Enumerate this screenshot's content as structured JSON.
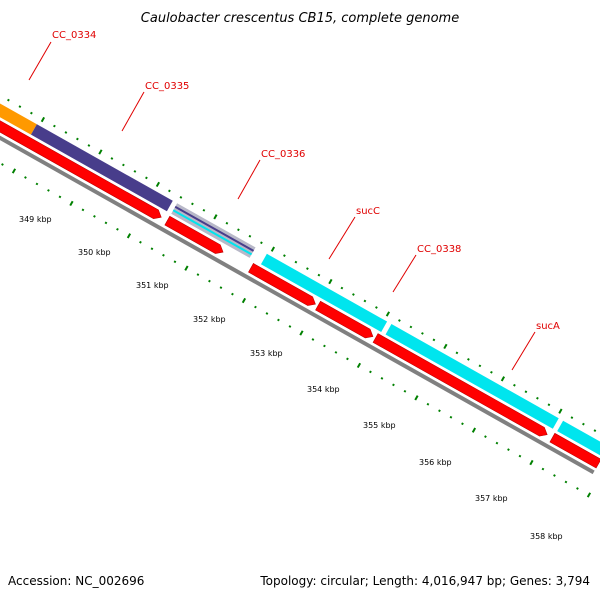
{
  "title": "Caulobacter crescentus CB15, complete genome",
  "accession": "Accession: NC_002696",
  "topology": "Topology: circular; Length: 4,016,947 bp; Genes: 3,794",
  "colors": {
    "cds_reverse": "#ff0000",
    "cds_forward_cyan": "#00e5ee",
    "cds_forward_navy": "#483d8b",
    "cds_forward_orange": "#ff9900",
    "cds_forward_gray": "#b8b8c8",
    "backbone": "#808080",
    "ticks": "#008000",
    "gene_labels": "#e00000"
  },
  "gene_labels": [
    {
      "name": "CC_0334"
    },
    {
      "name": "CC_0335"
    },
    {
      "name": "CC_0336"
    },
    {
      "name": "sucC"
    },
    {
      "name": "CC_0338"
    },
    {
      "name": "sucA"
    }
  ],
  "ruler": {
    "labels": [
      "349 kbp",
      "350 kbp",
      "351 kbp",
      "352 kbp",
      "353 kbp",
      "354 kbp",
      "355 kbp",
      "356 kbp",
      "357 kbp",
      "358 kbp"
    ]
  }
}
